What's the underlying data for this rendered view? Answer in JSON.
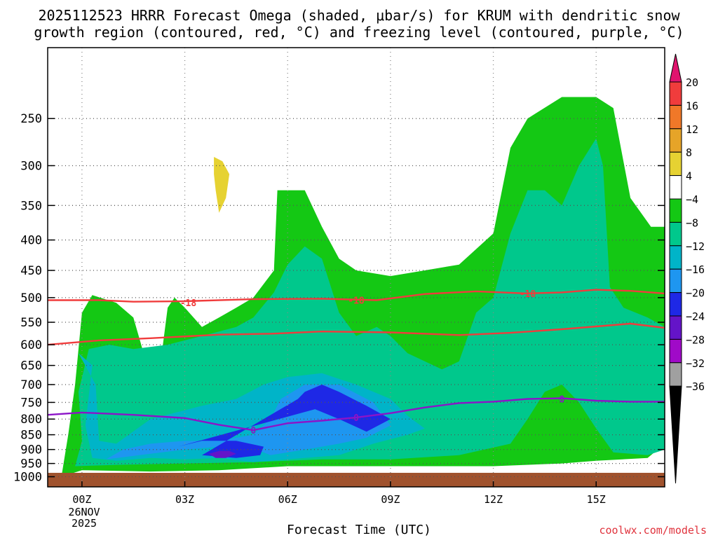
{
  "title_line1": "2025112523 HRRR Forecast Omega (shaded, μbar/s) for KRUM with dendritic snow",
  "title_line2": "growth region (contoured, red, °C) and freezing level (contoured, purple, °C)",
  "xlabel": "Forecast Time (UTC)",
  "credit": "coolwx.com/models",
  "date_day": "26NOV",
  "date_year": "2025",
  "chart_data": {
    "type": "contour",
    "x_ticks": [
      {
        "hour": 0,
        "label": "00Z"
      },
      {
        "hour": 3,
        "label": "03Z"
      },
      {
        "hour": 6,
        "label": "06Z"
      },
      {
        "hour": 9,
        "label": "09Z"
      },
      {
        "hour": 12,
        "label": "12Z"
      },
      {
        "hour": 15,
        "label": "15Z"
      }
    ],
    "xlim": [
      -1,
      17
    ],
    "y_ticks": [
      250,
      300,
      350,
      400,
      450,
      500,
      550,
      600,
      650,
      700,
      750,
      800,
      850,
      900,
      950,
      1000
    ],
    "ylim": [
      1040,
      190
    ],
    "colorbar": {
      "labels": [
        "20",
        "16",
        "12",
        "8",
        "4",
        "−4",
        "−8",
        "−12",
        "−16",
        "−20",
        "−24",
        "−28",
        "−32",
        "−36"
      ],
      "colors": [
        "#e0146e",
        "#f03c3c",
        "#f07828",
        "#e6a428",
        "#e6d232",
        "#ffffff",
        "#14c814",
        "#00c88c",
        "#00b4c8",
        "#1e96f0",
        "#1e28e6",
        "#6414c8",
        "#a00ac8",
        "#a0a0a0",
        "#000000"
      ]
    },
    "ground_color": "#a0522d",
    "fill_levels": [
      {
        "name": "-4",
        "color": "#14c814",
        "points": [
          [
            -0.6,
            1000
          ],
          [
            -0.4,
            850
          ],
          [
            -0.2,
            700
          ],
          [
            0.0,
            530
          ],
          [
            0.3,
            495
          ],
          [
            1.0,
            510
          ],
          [
            1.5,
            540
          ],
          [
            2.0,
            680
          ],
          [
            2.3,
            640
          ],
          [
            2.5,
            520
          ],
          [
            2.7,
            500
          ],
          [
            3.0,
            520
          ],
          [
            3.5,
            560
          ],
          [
            4.0,
            540
          ],
          [
            4.5,
            520
          ],
          [
            5.0,
            500
          ],
          [
            5.6,
            450
          ],
          [
            5.7,
            330
          ],
          [
            6.0,
            330
          ],
          [
            6.5,
            330
          ],
          [
            7.0,
            380
          ],
          [
            7.5,
            430
          ],
          [
            8.0,
            450
          ],
          [
            9.0,
            460
          ],
          [
            10.0,
            450
          ],
          [
            11.0,
            440
          ],
          [
            12.0,
            390
          ],
          [
            12.5,
            280
          ],
          [
            13.0,
            250
          ],
          [
            14.0,
            230
          ],
          [
            15.0,
            230
          ],
          [
            15.5,
            240
          ],
          [
            16.0,
            340
          ],
          [
            16.6,
            380
          ],
          [
            17.0,
            380
          ],
          [
            17.0,
            880
          ],
          [
            16.5,
            930
          ],
          [
            15.0,
            940
          ],
          [
            14.0,
            950
          ],
          [
            12.0,
            960
          ],
          [
            10.0,
            960
          ],
          [
            8.0,
            960
          ],
          [
            6.0,
            960
          ],
          [
            4.0,
            975
          ],
          [
            2.0,
            980
          ],
          [
            0.0,
            975
          ]
        ]
      },
      {
        "name": "-8",
        "color": "#00c88c",
        "points": [
          [
            -0.2,
            960
          ],
          [
            0.0,
            870
          ],
          [
            -0.1,
            720
          ],
          [
            0.2,
            610
          ],
          [
            0.8,
            600
          ],
          [
            1.5,
            610
          ],
          [
            2.5,
            600
          ],
          [
            3.5,
            580
          ],
          [
            4.5,
            560
          ],
          [
            5.0,
            540
          ],
          [
            5.6,
            490
          ],
          [
            6.0,
            440
          ],
          [
            6.5,
            410
          ],
          [
            7.0,
            430
          ],
          [
            7.5,
            530
          ],
          [
            8.0,
            580
          ],
          [
            8.6,
            560
          ],
          [
            9.0,
            580
          ],
          [
            9.5,
            620
          ],
          [
            10.5,
            660
          ],
          [
            11.0,
            640
          ],
          [
            11.5,
            530
          ],
          [
            12.0,
            500
          ],
          [
            12.5,
            390
          ],
          [
            13.0,
            330
          ],
          [
            13.5,
            330
          ],
          [
            14.0,
            350
          ],
          [
            14.5,
            300
          ],
          [
            15.0,
            270
          ],
          [
            15.2,
            300
          ],
          [
            15.4,
            480
          ],
          [
            15.8,
            520
          ],
          [
            16.5,
            540
          ],
          [
            17.0,
            560
          ],
          [
            17.0,
            900
          ],
          [
            16.5,
            920
          ],
          [
            15.5,
            910
          ],
          [
            15.0,
            830
          ],
          [
            14.5,
            750
          ],
          [
            14.0,
            700
          ],
          [
            13.5,
            720
          ],
          [
            13.0,
            800
          ],
          [
            12.5,
            880
          ],
          [
            11.0,
            920
          ],
          [
            9.0,
            935
          ],
          [
            7.0,
            935
          ],
          [
            5.0,
            945
          ],
          [
            3.0,
            950
          ],
          [
            1.0,
            955
          ]
        ]
      },
      {
        "name": "-12",
        "color": "#00b4c8",
        "points": [
          [
            -0.1,
            620
          ],
          [
            0.3,
            650
          ],
          [
            0.1,
            820
          ],
          [
            0.3,
            930
          ],
          [
            1.0,
            940
          ],
          [
            2.0,
            930
          ],
          [
            3.0,
            935
          ],
          [
            4.0,
            930
          ],
          [
            5.0,
            945
          ],
          [
            6.5,
            930
          ],
          [
            7.5,
            920
          ],
          [
            8.5,
            880
          ],
          [
            9.5,
            850
          ],
          [
            10.0,
            830
          ],
          [
            9.5,
            790
          ],
          [
            9.0,
            740
          ],
          [
            8.0,
            700
          ],
          [
            7.0,
            670
          ],
          [
            6.0,
            680
          ],
          [
            5.3,
            700
          ],
          [
            4.5,
            740
          ],
          [
            3.5,
            760
          ],
          [
            2.0,
            800
          ],
          [
            1.0,
            880
          ],
          [
            0.5,
            870
          ],
          [
            0.4,
            700
          ]
        ]
      },
      {
        "name": "-16",
        "color": "#1e96f0",
        "points": [
          [
            0.7,
            935
          ],
          [
            2.0,
            915
          ],
          [
            3.0,
            900
          ],
          [
            4.0,
            890
          ],
          [
            5.0,
            895
          ],
          [
            5.5,
            920
          ],
          [
            6.5,
            900
          ],
          [
            7.5,
            880
          ],
          [
            8.3,
            860
          ],
          [
            9.0,
            820
          ],
          [
            8.5,
            750
          ],
          [
            7.5,
            700
          ],
          [
            6.5,
            700
          ],
          [
            5.8,
            740
          ],
          [
            5.5,
            800
          ],
          [
            5.0,
            850
          ],
          [
            4.0,
            870
          ],
          [
            3.0,
            870
          ],
          [
            2.0,
            880
          ],
          [
            1.2,
            900
          ]
        ]
      },
      {
        "name": "-20",
        "color": "#1e28e6",
        "points": [
          [
            6.3,
            740
          ],
          [
            6.5,
            720
          ],
          [
            7.0,
            700
          ],
          [
            7.5,
            720
          ],
          [
            8.3,
            760
          ],
          [
            9.0,
            800
          ],
          [
            8.3,
            840
          ],
          [
            7.5,
            800
          ],
          [
            6.8,
            770
          ],
          [
            2.8,
            890
          ],
          [
            3.5,
            870
          ],
          [
            4.5,
            870
          ],
          [
            5.3,
            890
          ],
          [
            5.2,
            920
          ],
          [
            4.5,
            930
          ],
          [
            3.5,
            920
          ]
        ]
      },
      {
        "name": "-24",
        "color": "#6414c8",
        "points": [
          [
            3.7,
            915
          ],
          [
            4.0,
            905
          ],
          [
            4.3,
            905
          ],
          [
            4.5,
            915
          ],
          [
            4.2,
            930
          ],
          [
            3.9,
            930
          ]
        ]
      },
      {
        "name": "+4",
        "color": "#e6d232",
        "points": [
          [
            3.85,
            290
          ],
          [
            4.1,
            295
          ],
          [
            4.3,
            310
          ],
          [
            4.2,
            340
          ],
          [
            4.0,
            360
          ],
          [
            3.9,
            330
          ],
          [
            3.85,
            310
          ]
        ]
      }
    ],
    "contours": [
      {
        "name": "dendritic snow growth -18",
        "color": "#f03c3c",
        "label": "-18",
        "label_positions": [
          [
            3.1,
            510
          ],
          [
            8.0,
            505
          ],
          [
            13.0,
            492
          ]
        ],
        "points": [
          [
            -1.0,
            505
          ],
          [
            0.5,
            505
          ],
          [
            1.5,
            508
          ],
          [
            3.0,
            507
          ],
          [
            5.0,
            503
          ],
          [
            7.0,
            502
          ],
          [
            8.6,
            505
          ],
          [
            10.0,
            493
          ],
          [
            11.5,
            488
          ],
          [
            13.0,
            492
          ],
          [
            14.0,
            490
          ],
          [
            15.0,
            485
          ],
          [
            16.0,
            487
          ],
          [
            17.0,
            492
          ]
        ]
      },
      {
        "name": "dendritic snow growth -12",
        "color": "#f03c3c",
        "label": "",
        "label_positions": [],
        "points": [
          [
            -1.0,
            600
          ],
          [
            0.5,
            590
          ],
          [
            2.0,
            585
          ],
          [
            4.0,
            577
          ],
          [
            5.5,
            575
          ],
          [
            7.0,
            570
          ],
          [
            9.0,
            572
          ],
          [
            11.0,
            578
          ],
          [
            12.5,
            573
          ],
          [
            14.0,
            565
          ],
          [
            16.0,
            553
          ],
          [
            17.0,
            562
          ]
        ]
      },
      {
        "name": "freezing level 0",
        "color": "#8c14c8",
        "label": "0",
        "label_positions": [
          [
            5.0,
            835
          ],
          [
            8.0,
            795
          ],
          [
            14.0,
            740
          ]
        ],
        "points": [
          [
            -1.0,
            787
          ],
          [
            0.0,
            780
          ],
          [
            1.5,
            787
          ],
          [
            3.0,
            797
          ],
          [
            4.0,
            818
          ],
          [
            5.0,
            835
          ],
          [
            6.0,
            813
          ],
          [
            7.0,
            805
          ],
          [
            8.0,
            795
          ],
          [
            9.0,
            782
          ],
          [
            10.0,
            765
          ],
          [
            11.0,
            752
          ],
          [
            12.0,
            748
          ],
          [
            13.0,
            740
          ],
          [
            14.0,
            738
          ],
          [
            15.0,
            745
          ],
          [
            16.0,
            748
          ],
          [
            17.0,
            748
          ]
        ]
      }
    ]
  }
}
